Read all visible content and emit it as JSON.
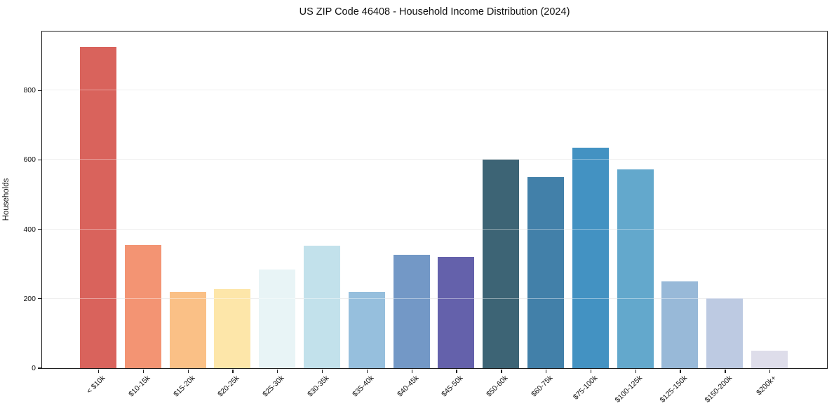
{
  "title": "US ZIP Code 46408 - Household Income Distribution (2024)",
  "chart_data": {
    "type": "bar",
    "title": "US ZIP Code 46408 - Household Income Distribution (2024)",
    "xlabel": "",
    "ylabel": "Households",
    "ylim": [
      0,
      970
    ],
    "yticks": [
      0,
      200,
      400,
      600,
      800
    ],
    "grid": "horizontal",
    "legend": "none",
    "categories": [
      "< $10k",
      "$10-15k",
      "$15-20k",
      "$20-25k",
      "$25-30k",
      "$30-35k",
      "$35-40k",
      "$40-45k",
      "$45-50k",
      "$50-60k",
      "$60-75k",
      "$75-100k",
      "$100-125k",
      "$125-150k",
      "$150-200k",
      "$200k+"
    ],
    "values": [
      925,
      355,
      220,
      227,
      285,
      352,
      219,
      326,
      320,
      600,
      550,
      635,
      572,
      250,
      202,
      50
    ],
    "bar_colors": [
      "#d75b53",
      "#f28e6c",
      "#fabd80",
      "#fde5a4",
      "#e7f3f5",
      "#bfdfea",
      "#90bcdb",
      "#6b92c3",
      "#5c59a7",
      "#335c6e",
      "#3879a4",
      "#398cbf",
      "#5ba3c9",
      "#92b5d6",
      "#b9c7e0",
      "#dcdbe9"
    ],
    "spine_color": "#1c1c1c",
    "grid_color": "#e4e4e4",
    "background_color": "#ffffff"
  }
}
